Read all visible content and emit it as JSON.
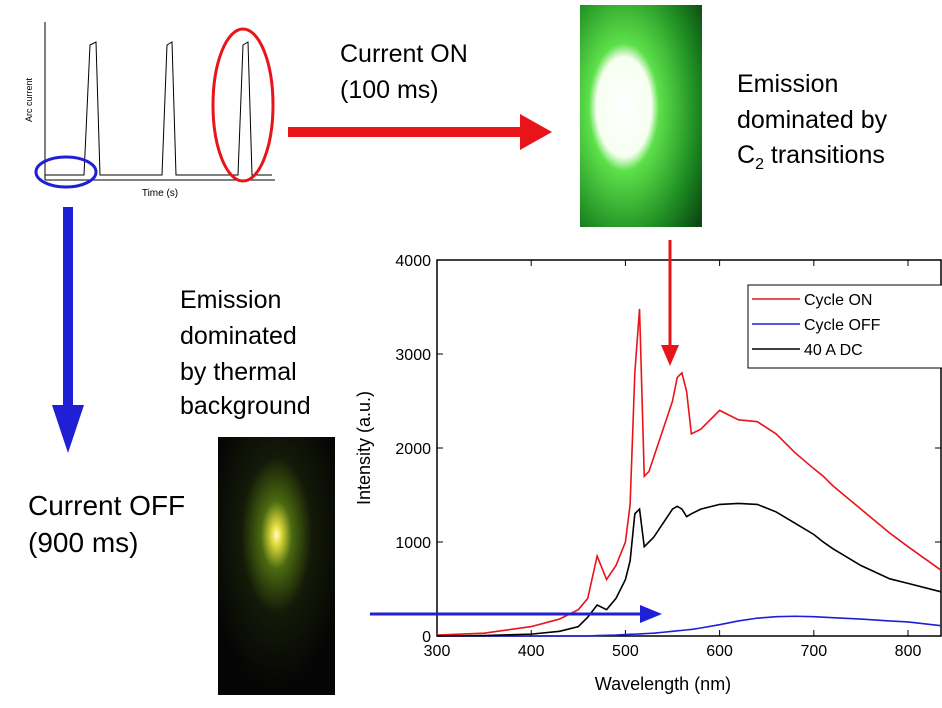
{
  "chart_data": {
    "type": "line",
    "xlabel": "Wavelength (nm)",
    "ylabel": "Intensity (a.u.)",
    "x": [
      300,
      350,
      400,
      430,
      450,
      460,
      470,
      480,
      490,
      500,
      505,
      510,
      515,
      520,
      525,
      530,
      540,
      550,
      555,
      560,
      565,
      570,
      580,
      600,
      620,
      640,
      660,
      680,
      700,
      710,
      720,
      750,
      780,
      800,
      835
    ],
    "series": [
      {
        "name": "Cycle ON",
        "color": "#e8141a",
        "values": [
          10,
          30,
          100,
          180,
          280,
          400,
          850,
          600,
          750,
          1000,
          1400,
          2800,
          3480,
          1700,
          1750,
          1900,
          2200,
          2500,
          2750,
          2800,
          2600,
          2150,
          2200,
          2400,
          2300,
          2280,
          2150,
          1950,
          1780,
          1700,
          1600,
          1350,
          1100,
          950,
          700
        ]
      },
      {
        "name": "Cycle OFF",
        "color": "#1f1fd6",
        "values": [
          0,
          0,
          0,
          0,
          0,
          0,
          5,
          8,
          10,
          15,
          18,
          20,
          22,
          25,
          28,
          30,
          40,
          50,
          55,
          60,
          65,
          70,
          85,
          120,
          160,
          190,
          205,
          210,
          205,
          200,
          195,
          180,
          160,
          150,
          110
        ]
      },
      {
        "name": "40 A DC",
        "color": "#000000",
        "values": [
          0,
          5,
          20,
          50,
          100,
          200,
          330,
          280,
          400,
          600,
          800,
          1300,
          1350,
          950,
          1000,
          1050,
          1200,
          1350,
          1380,
          1350,
          1270,
          1300,
          1350,
          1400,
          1410,
          1400,
          1320,
          1200,
          1080,
          1000,
          930,
          750,
          610,
          560,
          470
        ]
      }
    ],
    "xlim": [
      300,
      835
    ],
    "xticks": [
      300,
      400,
      500,
      600,
      700,
      800
    ],
    "ylim": [
      0,
      4000
    ],
    "yticks": [
      0,
      1000,
      2000,
      3000,
      4000
    ],
    "legend": "upper-right"
  },
  "inset": {
    "ylabel": "Arc current",
    "xlabel": "Time (s)"
  },
  "labels": {
    "on": [
      "Current ON",
      "(100 ms)"
    ],
    "c2": {
      "line1": "Emission",
      "line2": "dominated by",
      "line3": "C",
      "sub": "2",
      "rest": " transitions"
    },
    "thermal": [
      "Emission",
      "dominated",
      "by thermal",
      "background"
    ],
    "off": [
      "Current OFF",
      "(900 ms)"
    ]
  }
}
